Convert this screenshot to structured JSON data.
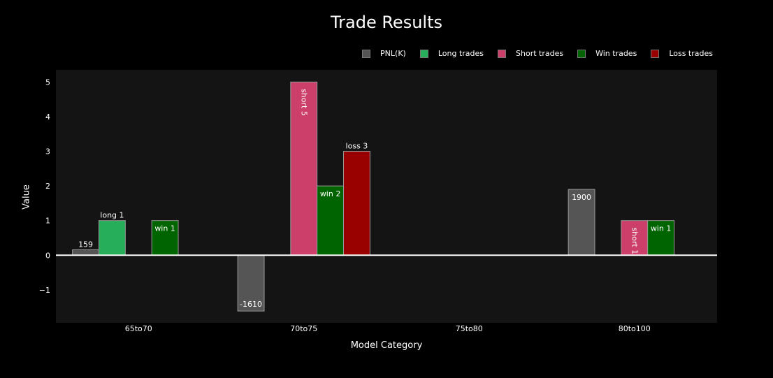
{
  "chart_data": {
    "type": "bar",
    "title": "Trade Results",
    "xlabel": "Model Category",
    "ylabel": "Value",
    "categories": [
      "65to70",
      "70to75",
      "75to80",
      "80to100"
    ],
    "ylim": [
      -1.95,
      5.35
    ],
    "yticks": [
      -1,
      0,
      1,
      2,
      3,
      4,
      5
    ],
    "ytick_labels": [
      "−1",
      "0",
      "1",
      "2",
      "3",
      "4",
      "5"
    ],
    "series": [
      {
        "name": "PNL(K)",
        "color": "#555555",
        "values": [
          0.159,
          -1.61,
          null,
          1.9
        ],
        "labels": [
          "159",
          "-1610",
          "",
          "1900"
        ]
      },
      {
        "name": "Long trades",
        "color": "#27ae5a",
        "values": [
          1,
          null,
          null,
          null
        ],
        "labels": [
          "long 1",
          "",
          "",
          ""
        ]
      },
      {
        "name": "Short trades",
        "color": "#cc3f6a",
        "values": [
          null,
          5,
          null,
          1
        ],
        "labels": [
          "",
          "short 5",
          "",
          "short 1"
        ]
      },
      {
        "name": "Win trades",
        "color": "#006400",
        "values": [
          1,
          2,
          null,
          1
        ],
        "labels": [
          "win 1",
          "win 2",
          "",
          "win 1"
        ]
      },
      {
        "name": "Loss trades",
        "color": "#990000",
        "values": [
          null,
          3,
          null,
          null
        ],
        "labels": [
          "",
          "loss 3",
          "",
          ""
        ]
      }
    ],
    "legend_position": "top-right",
    "plot_background": "#141414",
    "page_background": "#000000"
  }
}
